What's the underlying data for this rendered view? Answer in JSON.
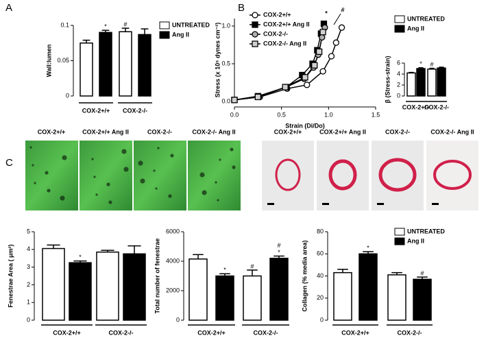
{
  "panels": [
    "A",
    "B",
    "C"
  ],
  "micrographs": {
    "fenestrae": [
      "COX-2+/+",
      "COX-2+/+ Ang II",
      "COX-2-/-",
      "COX-2-/- Ang II"
    ],
    "collagen": [
      "COX-2+/+",
      "COX-2+/+ Ang II",
      "COX-2-/-",
      "COX-2-/- Ang II"
    ]
  },
  "chart_data": [
    {
      "type": "bar",
      "ylabel": "Wall:lumen",
      "categories": [
        "COX-2+/+",
        "COX-2-/-"
      ],
      "ylim": [
        0,
        0.1
      ],
      "yticks": [
        0,
        0.05,
        0.1
      ],
      "legend": true,
      "series": [
        {
          "name": "UNTREATED",
          "color": "#ffffff",
          "values": [
            0.075,
            0.091
          ],
          "errors": [
            0.004,
            0.005
          ],
          "marks": [
            [],
            [
              "#"
            ]
          ]
        },
        {
          "name": "Ang II",
          "color": "#000000",
          "values": [
            0.09,
            0.087
          ],
          "errors": [
            0.003,
            0.008
          ],
          "marks": [
            [
              "*"
            ],
            []
          ]
        }
      ]
    },
    {
      "type": "line",
      "xlabel": "Strain (Di/Do)",
      "ylabel": "Stress (x 10⁶ dynes cm⁻²)",
      "xlim": [
        0,
        1.5
      ],
      "xticks": [
        {
          "value": 0,
          "label": "0.0"
        },
        {
          "value": 0.5,
          "label": "0.5"
        },
        {
          "value": 1.0,
          "label": "1.0"
        },
        {
          "value": 1.5,
          "label": "1.5"
        }
      ],
      "ylim": [
        0,
        1.1
      ],
      "yticks": [
        {
          "value": 0,
          "label": "0.0"
        },
        {
          "value": 0.5,
          "label": "0.5"
        },
        {
          "value": 1.0,
          "label": "1.0"
        }
      ],
      "annotations": [
        "*",
        "#"
      ],
      "series": [
        {
          "name": "COX-2+/+",
          "color": "#ffffff",
          "marker": "circle",
          "x": [
            0,
            0.27,
            0.56,
            0.77,
            0.94,
            1.03,
            1.08,
            1.14
          ],
          "values": [
            0.02,
            0.06,
            0.17,
            0.22,
            0.4,
            0.6,
            0.78,
            0.98
          ]
        },
        {
          "name": "COX-2+/+ Ang II",
          "color": "#000000",
          "marker": "square",
          "x": [
            0,
            0.25,
            0.55,
            0.72,
            0.83,
            0.88,
            0.92,
            0.95
          ],
          "values": [
            0.02,
            0.07,
            0.19,
            0.35,
            0.5,
            0.68,
            0.9,
            1.03
          ]
        },
        {
          "name": "COX-2-/-",
          "color": "#b0b0b0",
          "marker": "circle",
          "x": [
            0,
            0.26,
            0.55,
            0.74,
            0.84,
            0.89,
            0.93,
            0.96
          ],
          "values": [
            0.02,
            0.06,
            0.19,
            0.3,
            0.45,
            0.62,
            0.85,
            0.98
          ]
        },
        {
          "name": "COX-2-/- Ang II",
          "color": "#d0d0d0",
          "marker": "square",
          "x": [
            0,
            0.25,
            0.54,
            0.75,
            0.85,
            0.9,
            0.94
          ],
          "values": [
            0.02,
            0.06,
            0.19,
            0.32,
            0.48,
            0.66,
            0.92
          ]
        }
      ]
    },
    {
      "type": "bar",
      "ylabel": "β (Stress-strain)",
      "categories": [
        "COX-2+/+",
        "COX-2-/-"
      ],
      "ylim": [
        0,
        6
      ],
      "yticks": [
        0,
        2,
        4,
        6
      ],
      "legend": true,
      "series": [
        {
          "name": "UNTREATED",
          "color": "#ffffff",
          "values": [
            4.2,
            4.9
          ],
          "errors": [
            0.1,
            0.15
          ],
          "marks": [
            [],
            [
              "#"
            ]
          ]
        },
        {
          "name": "Ang II",
          "color": "#000000",
          "values": [
            5.0,
            5.1
          ],
          "errors": [
            0.15,
            0.15
          ],
          "marks": [
            [
              "*"
            ],
            []
          ]
        }
      ]
    },
    {
      "type": "bar",
      "ylabel": "Fenestrae Area ( μm²)",
      "categories": [
        "COX-2+/+",
        "COX-2-/-"
      ],
      "ylim": [
        0,
        5
      ],
      "yticks": [
        0,
        1,
        2,
        3,
        4,
        5
      ],
      "legend": false,
      "series": [
        {
          "color": "#ffffff",
          "values": [
            4.05,
            3.85
          ],
          "errors": [
            0.2,
            0.1
          ],
          "marks": [
            [],
            []
          ]
        },
        {
          "color": "#000000",
          "values": [
            3.25,
            3.75
          ],
          "errors": [
            0.1,
            0.45
          ],
          "marks": [
            [
              "*"
            ],
            []
          ]
        }
      ]
    },
    {
      "type": "bar",
      "ylabel": "Total number of fenestrae",
      "categories": [
        "COX-2+/+",
        "COX-2-/-"
      ],
      "ylim": [
        0,
        6000
      ],
      "yticks": [
        0,
        2000,
        4000,
        6000
      ],
      "legend": false,
      "series": [
        {
          "color": "#ffffff",
          "values": [
            4150,
            3000
          ],
          "errors": [
            300,
            400
          ],
          "marks": [
            [],
            [
              "#"
            ]
          ]
        },
        {
          "color": "#000000",
          "values": [
            3000,
            4200
          ],
          "errors": [
            150,
            150
          ],
          "marks": [
            [
              "*"
            ],
            [
              "#",
              "*"
            ]
          ]
        }
      ]
    },
    {
      "type": "bar",
      "ylabel": "Collagen (% media area)",
      "categories": [
        "COX-2+/+",
        "COX-2-/-"
      ],
      "ylim": [
        0,
        80
      ],
      "yticks": [
        0,
        20,
        40,
        60,
        80
      ],
      "legend": true,
      "series": [
        {
          "name": "UNTREATED",
          "color": "#ffffff",
          "values": [
            43,
            41
          ],
          "errors": [
            3,
            2
          ],
          "marks": [
            [],
            []
          ]
        },
        {
          "name": "Ang II",
          "color": "#000000",
          "values": [
            60,
            37
          ],
          "errors": [
            2,
            2
          ],
          "marks": [
            [
              "*"
            ],
            [
              "#"
            ]
          ]
        }
      ]
    }
  ]
}
